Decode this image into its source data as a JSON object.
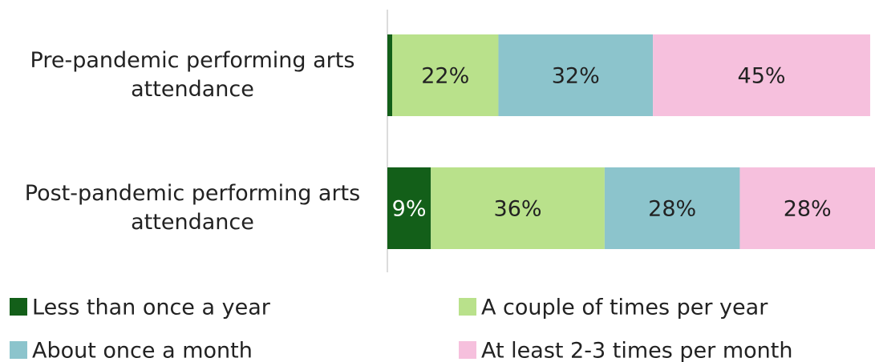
{
  "chart_data": {
    "type": "stacked-bar-horizontal",
    "categories": [
      "Pre-pandemic performing arts attendance",
      "Post-pandemic performing arts attendance"
    ],
    "series": [
      {
        "name": "Less than once a year",
        "color": "#135f19",
        "values": [
          1,
          9
        ],
        "value_labels": [
          null,
          "9%"
        ]
      },
      {
        "name": "A couple of times per year",
        "color": "#b9e18b",
        "values": [
          22,
          36
        ],
        "value_labels": [
          "22%",
          "36%"
        ]
      },
      {
        "name": "About once a month",
        "color": "#8cc4cc",
        "values": [
          32,
          28
        ],
        "value_labels": [
          "32%",
          "28%"
        ]
      },
      {
        "name": "At least 2-3 times per month",
        "color": "#f6c0dd",
        "values": [
          45,
          28
        ],
        "value_labels": [
          "45%",
          "28%"
        ]
      }
    ],
    "xlim": [
      0,
      101
    ]
  }
}
